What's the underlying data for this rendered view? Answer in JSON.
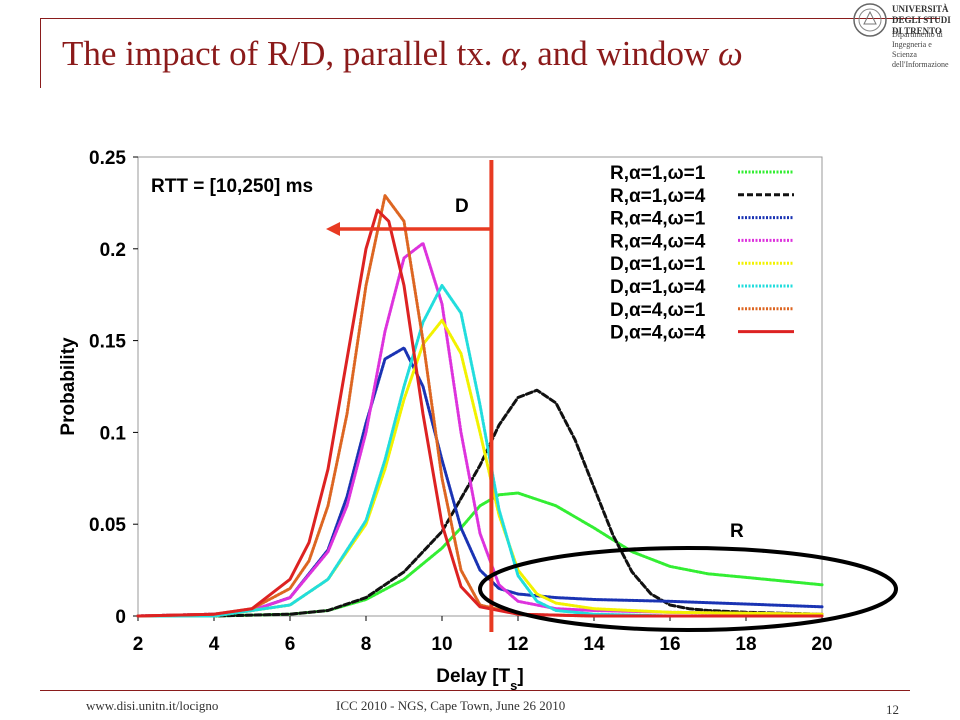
{
  "slide": {
    "title_text": "The impact of R/D, parallel tx. ",
    "title_alpha": "α",
    "title_mid": ", and window ",
    "title_omega": "ω"
  },
  "logo": {
    "university": [
      "UNIVERSITÀ DEGLI STUDI",
      "DI TRENTO"
    ],
    "department": [
      "Dipartimento di Ingegneria e",
      "Scienza dell'Informazione"
    ]
  },
  "footer": {
    "url": "www.disi.unitn.it/locigno",
    "conference": "ICC 2010 - NGS, Cape Town, June 26 2010",
    "page": "12"
  },
  "chart_data": {
    "type": "line",
    "xlabel": "Delay [Ts]",
    "ylabel": "Probability",
    "xlim": [
      2,
      20
    ],
    "ylim": [
      0,
      0.25
    ],
    "xticks": [
      2,
      4,
      6,
      8,
      10,
      12,
      14,
      16,
      18,
      20
    ],
    "yticks": [
      "0",
      "0.05",
      "0.1",
      "0.15",
      "0.2",
      "0.25"
    ],
    "grid": false,
    "legend_position": "top-right",
    "annotations": {
      "rtt": "RTT = [10,250] ms",
      "d_label": "D",
      "r_label": "R",
      "threshold_x": 11.3
    },
    "series": [
      {
        "name": "R,α=1,ω=1",
        "color": "#33ee33",
        "style": "dotted",
        "x": [
          2,
          4,
          6,
          7,
          8,
          9,
          10,
          10.5,
          11,
          11.5,
          12,
          13,
          14,
          15,
          16,
          17,
          18,
          19,
          20
        ],
        "y": [
          0,
          0,
          0.001,
          0.003,
          0.009,
          0.02,
          0.037,
          0.048,
          0.06,
          0.066,
          0.067,
          0.06,
          0.048,
          0.035,
          0.027,
          0.023,
          0.021,
          0.019,
          0.017
        ]
      },
      {
        "name": "R,α=1,ω=4",
        "color": "#111111",
        "style": "dashed",
        "x": [
          2,
          4,
          6,
          7,
          8,
          9,
          10,
          11,
          11.5,
          12,
          12.5,
          13,
          13.5,
          14,
          14.5,
          15,
          15.5,
          16,
          16.5,
          17,
          18,
          20
        ],
        "y": [
          0,
          0,
          0.001,
          0.003,
          0.01,
          0.024,
          0.046,
          0.082,
          0.104,
          0.119,
          0.123,
          0.116,
          0.096,
          0.07,
          0.044,
          0.024,
          0.012,
          0.006,
          0.004,
          0.003,
          0.002,
          0.001
        ]
      },
      {
        "name": "R,α=4,ω=1",
        "color": "#1a33b3",
        "style": "dotted",
        "x": [
          2,
          4,
          5,
          6,
          7,
          7.5,
          8,
          8.5,
          9,
          9.5,
          10,
          10.5,
          11,
          11.5,
          12,
          13,
          14,
          16,
          20
        ],
        "y": [
          0,
          0.001,
          0.003,
          0.01,
          0.036,
          0.065,
          0.105,
          0.14,
          0.146,
          0.125,
          0.085,
          0.048,
          0.025,
          0.015,
          0.012,
          0.01,
          0.009,
          0.008,
          0.005
        ]
      },
      {
        "name": "R,α=4,ω=4",
        "color": "#dd33dd",
        "style": "dotted",
        "x": [
          2,
          4,
          5,
          6,
          7,
          7.5,
          8,
          8.5,
          9,
          9.5,
          10,
          10.5,
          11,
          11.5,
          12,
          13,
          14,
          16,
          20
        ],
        "y": [
          0,
          0.001,
          0.003,
          0.01,
          0.035,
          0.06,
          0.1,
          0.155,
          0.195,
          0.203,
          0.17,
          0.1,
          0.045,
          0.017,
          0.008,
          0.004,
          0.003,
          0.002,
          0.001
        ]
      },
      {
        "name": "D,α=1,ω=1",
        "color": "#f2f200",
        "style": "dotted",
        "x": [
          2,
          4,
          6,
          7,
          8,
          8.5,
          9,
          9.5,
          10,
          10.5,
          11,
          11.5,
          12,
          12.5,
          13,
          14,
          16,
          20
        ],
        "y": [
          0,
          0,
          0.006,
          0.02,
          0.05,
          0.08,
          0.118,
          0.148,
          0.161,
          0.143,
          0.1,
          0.055,
          0.025,
          0.012,
          0.007,
          0.004,
          0.002,
          0.001
        ]
      },
      {
        "name": "D,α=1,ω=4",
        "color": "#22dddd",
        "style": "dotted",
        "x": [
          2,
          4,
          6,
          7,
          8,
          8.5,
          9,
          9.5,
          10,
          10.5,
          11,
          11.5,
          12,
          12.5,
          13,
          14,
          16,
          20
        ],
        "y": [
          0,
          0,
          0.006,
          0.02,
          0.052,
          0.085,
          0.125,
          0.16,
          0.18,
          0.165,
          0.115,
          0.058,
          0.022,
          0.008,
          0.003,
          0.001,
          0,
          0
        ]
      },
      {
        "name": "D,α=4,ω=1",
        "color": "#dd6622",
        "style": "dotted",
        "x": [
          2,
          4,
          5,
          6,
          6.5,
          7,
          7.5,
          8,
          8.5,
          9,
          9.5,
          10,
          10.5,
          11,
          12,
          14,
          20
        ],
        "y": [
          0,
          0.001,
          0.004,
          0.015,
          0.03,
          0.06,
          0.11,
          0.18,
          0.229,
          0.215,
          0.15,
          0.075,
          0.025,
          0.006,
          0.001,
          0,
          0
        ]
      },
      {
        "name": "D,α=4,ω=4",
        "color": "#dd2222",
        "style": "solid",
        "x": [
          2,
          4,
          5,
          6,
          6.5,
          7,
          7.5,
          8,
          8.3,
          8.6,
          9,
          9.5,
          10,
          10.5,
          11,
          12,
          14,
          20
        ],
        "y": [
          0,
          0.001,
          0.004,
          0.02,
          0.04,
          0.08,
          0.14,
          0.2,
          0.221,
          0.215,
          0.18,
          0.11,
          0.05,
          0.016,
          0.005,
          0.001,
          0,
          0
        ]
      }
    ]
  }
}
